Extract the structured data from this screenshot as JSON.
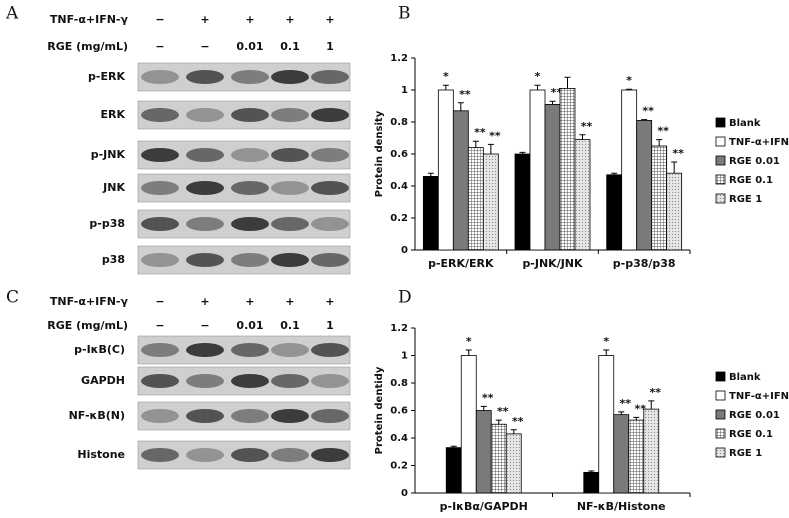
{
  "panel_labels": [
    "A",
    "B",
    "C",
    "D"
  ],
  "blots": [
    {
      "treatment_label": "TNF-α+IFN-γ",
      "treatment_signs": [
        "−",
        "+",
        "+",
        "+",
        "+"
      ],
      "dose_label": "RGE (mg/mL)",
      "doses": [
        "−",
        "−",
        "0.01",
        "0.1",
        "1"
      ],
      "bands": [
        "p-ERK",
        "ERK",
        "p-JNK",
        "JNK",
        "p-p38",
        "p38"
      ]
    },
    {
      "treatment_label": "TNF-α+IFN-γ",
      "treatment_signs": [
        "−",
        "+",
        "+",
        "+",
        "+"
      ],
      "dose_label": "RGE (mg/mL)",
      "doses": [
        "−",
        "−",
        "0.01",
        "0.1",
        "1"
      ],
      "bands": [
        "p-IκB(C)",
        "GAPDH",
        "NF-κB(N)",
        "Histone"
      ]
    }
  ],
  "chart_data": [
    {
      "type": "bar",
      "ylabel": "Protein density",
      "categories": [
        "p-ERK/ERK",
        "p-JNK/JNK",
        "p-p38/p38"
      ],
      "ylim": [
        0,
        1.2
      ],
      "yticks": [
        0,
        0.2,
        0.4,
        0.6,
        0.8,
        1,
        1.2
      ],
      "series": [
        {
          "name": "Blank",
          "color": "#000000",
          "pattern": "solid",
          "values": [
            0.46,
            0.6,
            0.47
          ],
          "errors": [
            0.02,
            0.01,
            0.01
          ],
          "significance": [
            null,
            null,
            null
          ]
        },
        {
          "name": "TNF-α+IFN-γ",
          "color": "#ffffff",
          "pattern": "solid",
          "values": [
            1.0,
            1.0,
            1.0
          ],
          "errors": [
            0.03,
            0.03,
            0.005
          ],
          "significance": [
            "*",
            "*",
            "*"
          ]
        },
        {
          "name": "RGE 0.01",
          "color": "#7a7a7a",
          "pattern": "solid",
          "values": [
            0.87,
            0.91,
            0.81
          ],
          "errors": [
            0.05,
            0.02,
            0.005
          ],
          "significance": [
            "**",
            "**",
            "**"
          ]
        },
        {
          "name": "RGE 0.1",
          "color": "#555555",
          "pattern": "grid",
          "values": [
            0.64,
            1.01,
            0.65
          ],
          "errors": [
            0.04,
            0.07,
            0.04
          ],
          "significance": [
            "**",
            null,
            "**"
          ]
        },
        {
          "name": "RGE 1",
          "color": "#999999",
          "pattern": "dots",
          "values": [
            0.6,
            0.69,
            0.48
          ],
          "errors": [
            0.06,
            0.03,
            0.07
          ],
          "significance": [
            "**",
            "**",
            "**"
          ]
        }
      ]
    },
    {
      "type": "bar",
      "ylabel": "Protein dentidy",
      "categories": [
        "p-IκBα/GAPDH",
        "NF-κB/Histone"
      ],
      "ylim": [
        0,
        1.2
      ],
      "yticks": [
        0,
        0.2,
        0.4,
        0.6,
        0.8,
        1,
        1.2
      ],
      "series": [
        {
          "name": "Blank",
          "color": "#000000",
          "pattern": "solid",
          "values": [
            0.33,
            0.15
          ],
          "errors": [
            0.01,
            0.01
          ],
          "significance": [
            null,
            null
          ]
        },
        {
          "name": "TNF-α+IFN-γ",
          "color": "#ffffff",
          "pattern": "solid",
          "values": [
            1.0,
            1.0
          ],
          "errors": [
            0.04,
            0.04
          ],
          "significance": [
            "*",
            "*"
          ]
        },
        {
          "name": "RGE 0.01",
          "color": "#7a7a7a",
          "pattern": "solid",
          "values": [
            0.6,
            0.57
          ],
          "errors": [
            0.03,
            0.02
          ],
          "significance": [
            "**",
            "**"
          ]
        },
        {
          "name": "RGE 0.1",
          "color": "#555555",
          "pattern": "grid",
          "values": [
            0.5,
            0.53
          ],
          "errors": [
            0.03,
            0.02
          ],
          "significance": [
            "**",
            "**"
          ]
        },
        {
          "name": "RGE 1",
          "color": "#999999",
          "pattern": "dots",
          "values": [
            0.43,
            0.61
          ],
          "errors": [
            0.03,
            0.06
          ],
          "significance": [
            "**",
            "**"
          ]
        }
      ]
    }
  ]
}
